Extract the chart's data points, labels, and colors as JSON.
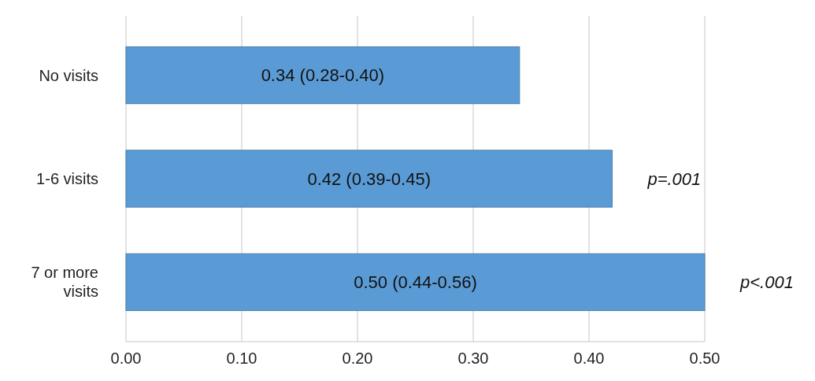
{
  "chart_data": {
    "type": "bar",
    "orientation": "horizontal",
    "categories": [
      "No visits",
      "1-6 visits",
      "7 or more visits"
    ],
    "values": [
      0.34,
      0.42,
      0.5
    ],
    "value_labels": [
      "0.34 (0.28-0.40)",
      "0.42 (0.39-0.45)",
      "0.50 (0.44-0.56)"
    ],
    "color": "#5b9bd5",
    "xlim": [
      0,
      0.5
    ],
    "xticks": [
      {
        "value": 0,
        "label": "0.00"
      },
      {
        "value": 0.1,
        "label": "0.10"
      },
      {
        "value": 0.2,
        "label": "0.20"
      },
      {
        "value": 0.3,
        "label": "0.30"
      },
      {
        "value": 0.4,
        "label": "0.40"
      },
      {
        "value": 0.5,
        "label": "0.50"
      }
    ],
    "grid": "x",
    "annotations": [
      {
        "text": "p=.001",
        "x": 0.42,
        "y": "1-6 visits"
      },
      {
        "text": "p<.001",
        "x": 0.5,
        "y": "7 or more visits"
      }
    ]
  }
}
